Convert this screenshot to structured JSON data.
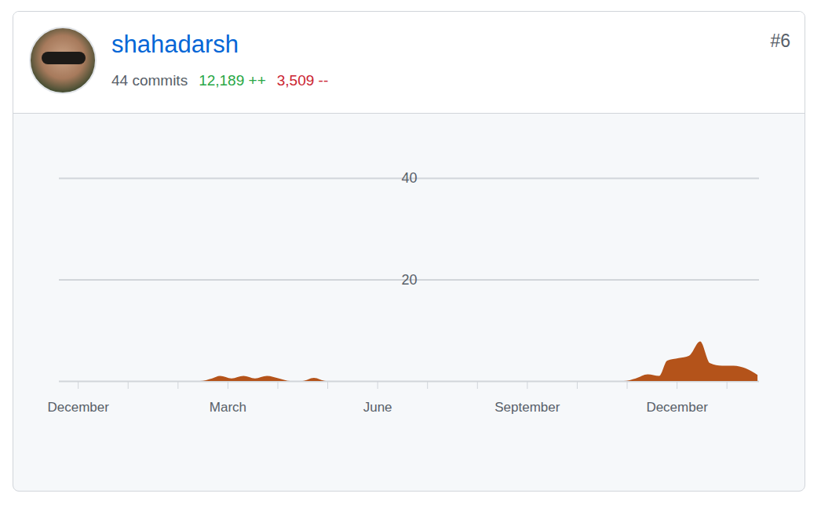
{
  "header": {
    "name": "shahadarsh",
    "commits": "44 commits",
    "additions": "12,189 ++",
    "deletions": "3,509 --",
    "rank": "#6"
  },
  "chart_data": {
    "type": "area",
    "color": "#b4531a",
    "grid": true,
    "x": [
      -0.38,
      2.2,
      2.45,
      2.69,
      2.85,
      3.08,
      3.32,
      3.55,
      3.79,
      4.03,
      4.26,
      4.5,
      4.73,
      4.97,
      5.2,
      10.7,
      10.94,
      11.18,
      11.42,
      11.65,
      11.81,
      12.04,
      12.25,
      12.47,
      12.67,
      12.91,
      13.14,
      13.38,
      13.62
    ],
    "values": [
      0,
      0,
      0,
      0.5,
      1,
      0.5,
      1,
      0.5,
      1,
      0.5,
      0,
      0,
      0.6,
      0,
      0,
      0,
      0,
      0.5,
      1.3,
      1,
      4,
      4.5,
      5,
      7.8,
      3.5,
      3,
      3,
      2.5,
      1.2
    ],
    "xlim": [
      -0.38,
      13.65
    ],
    "xticks": [
      {
        "value": 0,
        "label": "December"
      },
      {
        "value": 1,
        "label": null
      },
      {
        "value": 2,
        "label": null
      },
      {
        "value": 3,
        "label": "March"
      },
      {
        "value": 4,
        "label": null
      },
      {
        "value": 5,
        "label": null
      },
      {
        "value": 6,
        "label": "June"
      },
      {
        "value": 7,
        "label": null
      },
      {
        "value": 8,
        "label": null
      },
      {
        "value": 9,
        "label": "September"
      },
      {
        "value": 10,
        "label": null
      },
      {
        "value": 11,
        "label": null
      },
      {
        "value": 12,
        "label": "December"
      },
      {
        "value": 13,
        "label": null
      }
    ],
    "ylim": [
      0,
      40
    ],
    "yticks": [
      20,
      40
    ]
  }
}
